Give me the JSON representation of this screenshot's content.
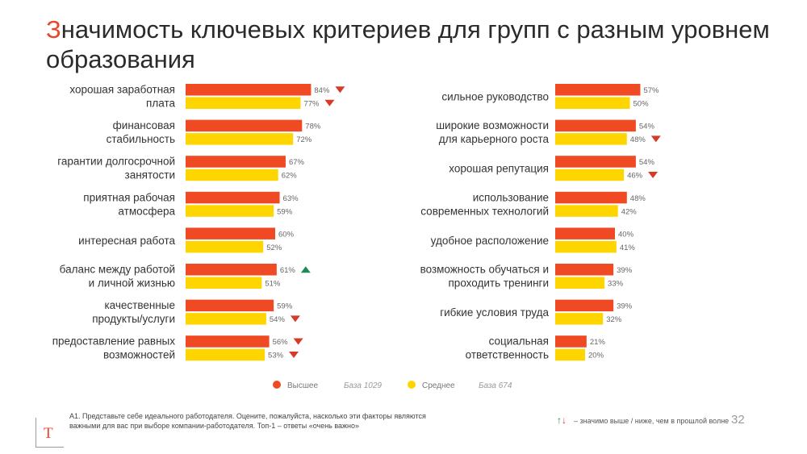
{
  "slide": {
    "title_first": "З",
    "title_rest": "начимость ключевых критериев для групп с разным уровнем образования",
    "page_number": "32",
    "footnote": "А1. Представьте себе идеального работодателя. Оцените, пожалуйста, насколько эти факторы являются важными для вас при выборе компании-работодателя. Топ-1 – ответы «очень важно»",
    "significance_note": "– значимо выше / ниже, чем в прошлой волне",
    "logo_letter": "Т",
    "colors": {
      "high": "#f04a24",
      "medium": "#ffd500",
      "up": "#1e8a55",
      "down": "#d63b2a",
      "title_accent": "#e8472c"
    }
  },
  "legend": [
    {
      "name": "Высшее",
      "base": "База 1029",
      "color": "#f04a24"
    },
    {
      "name": "Среднее",
      "base": "База 674",
      "color": "#ffd500"
    }
  ],
  "chart_data": {
    "type": "bar",
    "orientation": "horizontal",
    "value_format": "percent",
    "series_names": [
      "Высшее",
      "Среднее"
    ],
    "panels": [
      {
        "rows": [
          {
            "label": [
              "хорошая заработная",
              "плата"
            ],
            "values": [
              84,
              77
            ],
            "labels": [
              "84%",
              "77%"
            ],
            "markers": [
              "down",
              "down"
            ]
          },
          {
            "label": [
              "финансовая",
              "стабильность"
            ],
            "values": [
              78,
              72
            ],
            "labels": [
              "78%",
              "72%"
            ],
            "markers": [
              "",
              ""
            ]
          },
          {
            "label": [
              "гарантии долгосрочной",
              "занятости"
            ],
            "values": [
              67,
              62
            ],
            "labels": [
              "67%",
              "62%"
            ],
            "markers": [
              "",
              ""
            ]
          },
          {
            "label": [
              "приятная рабочая",
              "атмосфера"
            ],
            "values": [
              63,
              59
            ],
            "labels": [
              "63%",
              "59%"
            ],
            "markers": [
              "",
              ""
            ]
          },
          {
            "label": [
              "интересная работа"
            ],
            "values": [
              60,
              52
            ],
            "labels": [
              "60%",
              "52%"
            ],
            "markers": [
              "",
              ""
            ]
          },
          {
            "label": [
              "баланс между работой",
              "и личной жизнью"
            ],
            "values": [
              61,
              51
            ],
            "labels": [
              "61%",
              "51%"
            ],
            "markers": [
              "up",
              ""
            ]
          },
          {
            "label": [
              "качественные",
              "продукты/услуги"
            ],
            "values": [
              59,
              54
            ],
            "labels": [
              "59%",
              "54%"
            ],
            "markers": [
              "",
              "down"
            ]
          },
          {
            "label": [
              "предоставление равных",
              "возможностей"
            ],
            "values": [
              56,
              53
            ],
            "labels": [
              "56%",
              "53%"
            ],
            "markers": [
              "down",
              "down"
            ]
          }
        ]
      },
      {
        "rows": [
          {
            "label": [
              "сильное руководство"
            ],
            "values": [
              57,
              50
            ],
            "labels": [
              "57%",
              "50%"
            ],
            "markers": [
              "",
              ""
            ]
          },
          {
            "label": [
              "широкие возможности",
              "для карьерного роста"
            ],
            "values": [
              54,
              48
            ],
            "labels": [
              "54%",
              "48%"
            ],
            "markers": [
              "",
              "down"
            ]
          },
          {
            "label": [
              "хорошая репутация"
            ],
            "values": [
              54,
              46
            ],
            "labels": [
              "54%",
              "46%"
            ],
            "markers": [
              "",
              "down"
            ]
          },
          {
            "label": [
              "использование",
              "современных технологий"
            ],
            "values": [
              48,
              42
            ],
            "labels": [
              "48%",
              "42%"
            ],
            "markers": [
              "",
              ""
            ]
          },
          {
            "label": [
              "удобное расположение"
            ],
            "values": [
              40,
              41
            ],
            "labels": [
              "40%",
              "41%"
            ],
            "markers": [
              "",
              ""
            ]
          },
          {
            "label": [
              "возможность обучаться и",
              "проходить тренинги"
            ],
            "values": [
              39,
              33
            ],
            "labels": [
              "39%",
              "33%"
            ],
            "markers": [
              "",
              ""
            ]
          },
          {
            "label": [
              "гибкие условия труда"
            ],
            "values": [
              39,
              32
            ],
            "labels": [
              "39%",
              "32%"
            ],
            "markers": [
              "",
              ""
            ]
          },
          {
            "label": [
              "социальная",
              "ответственность"
            ],
            "values": [
              21,
              20
            ],
            "labels": [
              "21%",
              "20%"
            ],
            "markers": [
              "",
              ""
            ]
          }
        ]
      }
    ]
  }
}
